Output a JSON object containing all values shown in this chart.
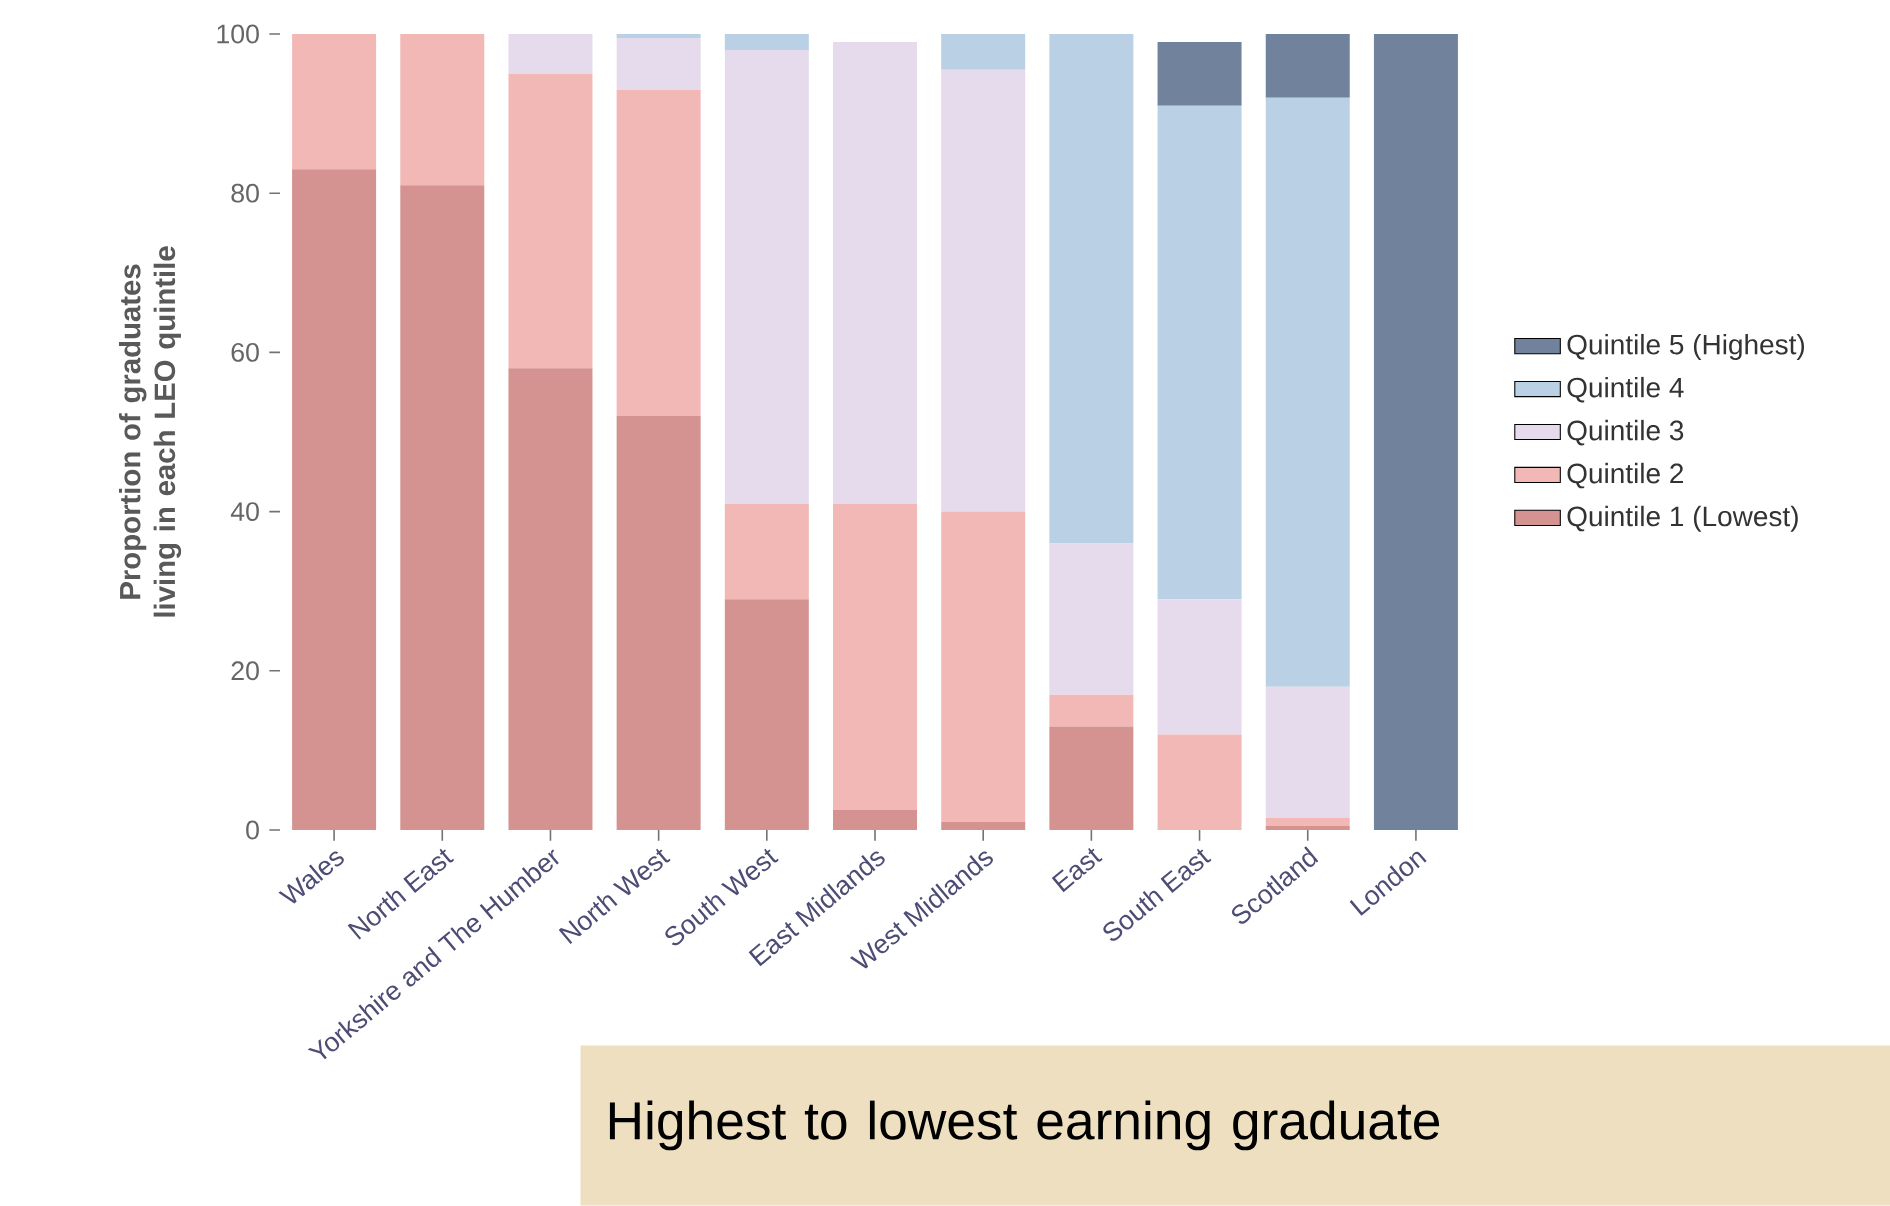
{
  "chart_data": {
    "type": "bar",
    "stacked": true,
    "ylabel": "Proportion of graduates living in each LEO quintile",
    "categories": [
      "Wales",
      "North East",
      "Yorkshire and The Humber",
      "North West",
      "South West",
      "East Midlands",
      "West Midlands",
      "East",
      "South East",
      "Scotland",
      "London"
    ],
    "series": [
      {
        "name": "Quintile 1 (Lowest)",
        "color": "#d49390",
        "values": [
          83,
          81,
          58,
          52,
          29,
          2.5,
          1,
          13,
          0,
          0.5,
          0
        ]
      },
      {
        "name": "Quintile 2",
        "color": "#f2b8b5",
        "values": [
          17,
          19,
          37,
          41,
          12,
          38.5,
          39,
          4,
          12,
          1,
          0
        ]
      },
      {
        "name": "Quintile 3",
        "color": "#e6dbec",
        "values": [
          0,
          0,
          5,
          6.5,
          57,
          58,
          55.5,
          19,
          17,
          16.5,
          0
        ]
      },
      {
        "name": "Quintile 4",
        "color": "#b9d0e5",
        "values": [
          0,
          0,
          0,
          0.5,
          2,
          0,
          4.5,
          64,
          62,
          74,
          0
        ]
      },
      {
        "name": "Quintile 5 (Highest)",
        "color": "#71829c",
        "values": [
          0,
          0,
          0,
          0,
          0,
          0,
          0,
          0,
          8,
          8,
          100
        ]
      }
    ],
    "ylim": [
      0,
      100
    ],
    "yticks": [
      0,
      20,
      40,
      60,
      80,
      100
    ],
    "grid": false,
    "legend": "right",
    "annotations": [
      "Highest to lowest earning graduate"
    ]
  }
}
